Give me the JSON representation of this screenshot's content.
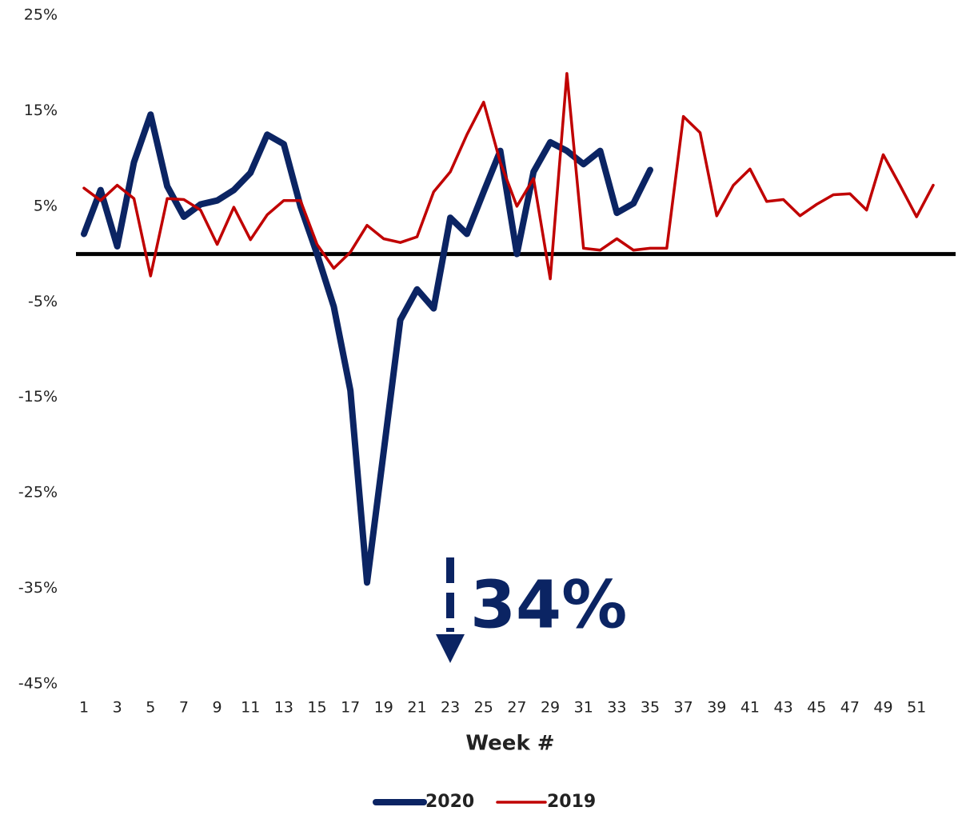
{
  "chart_data": {
    "type": "line",
    "x_label": "Week #",
    "categories": [
      "1",
      null,
      "3",
      null,
      "5",
      null,
      "7",
      null,
      "9",
      null,
      "11",
      null,
      "13",
      null,
      "15",
      null,
      "17",
      null,
      "19",
      null,
      "21",
      null,
      "23",
      null,
      "25",
      null,
      "27",
      null,
      "29",
      null,
      "31",
      null,
      "33",
      null,
      "35",
      null,
      "37",
      null,
      "39",
      null,
      "41",
      null,
      "43",
      null,
      "45",
      null,
      "47",
      null,
      "49",
      null,
      "51",
      null
    ],
    "series": [
      {
        "name": "2020",
        "color": "#0b2463",
        "values": [
          2.1,
          6.7,
          0.8,
          9.6,
          14.6,
          7.1,
          3.9,
          5.2,
          5.6,
          6.7,
          8.5,
          12.5,
          11.5,
          5.0,
          0.0,
          -5.5,
          -14.3,
          -34.4,
          -20.7,
          -6.9,
          -3.7,
          -5.7,
          3.8,
          2.1,
          6.5,
          10.8,
          0.0,
          8.6,
          11.7,
          10.8,
          9.4,
          10.8,
          4.3,
          5.3,
          8.8,
          null,
          null,
          null,
          null,
          null,
          null,
          null,
          null,
          null,
          null,
          null,
          null,
          null,
          null,
          null,
          null,
          null
        ]
      },
      {
        "name": "2019",
        "color": "#c00000",
        "values": [
          6.9,
          5.6,
          7.2,
          5.8,
          -2.3,
          5.8,
          5.7,
          4.6,
          1.0,
          4.9,
          1.5,
          4.1,
          5.6,
          5.6,
          1.0,
          -1.5,
          0.2,
          3.0,
          1.6,
          1.2,
          1.8,
          6.5,
          8.6,
          12.5,
          15.9,
          9.6,
          5.0,
          7.9,
          -2.6,
          18.9,
          0.6,
          0.4,
          1.6,
          0.4,
          0.6,
          0.6,
          14.4,
          12.7,
          4.0,
          7.2,
          8.9,
          5.5,
          5.7,
          4.0,
          5.2,
          6.2,
          6.3,
          4.6,
          10.4,
          7.2,
          3.9,
          7.2
        ]
      }
    ],
    "ylim": [
      -45,
      25
    ],
    "yticks": [
      {
        "value": 25,
        "label": "25%"
      },
      {
        "value": 15,
        "label": "15%"
      },
      {
        "value": 5,
        "label": "5%"
      },
      {
        "value": -5,
        "label": "-5%"
      },
      {
        "value": -15,
        "label": "-15%"
      },
      {
        "value": -25,
        "label": "-25%"
      },
      {
        "value": -35,
        "label": "-35%"
      },
      {
        "value": -45,
        "label": "-45%"
      }
    ],
    "reference_line": 0,
    "annotation": "34%",
    "legend": "bottom"
  }
}
